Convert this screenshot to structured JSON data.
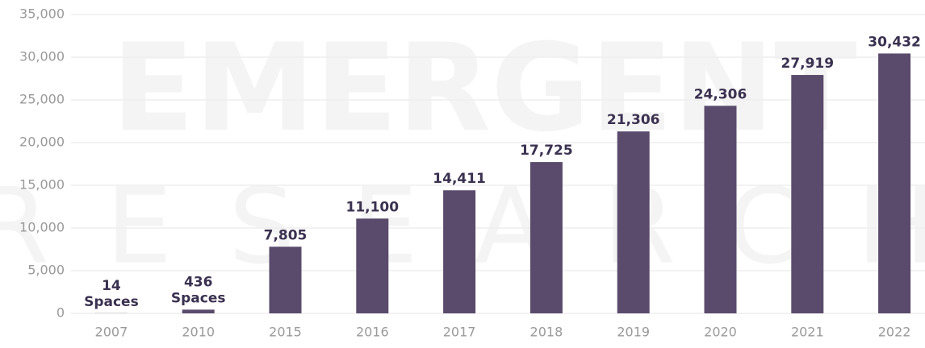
{
  "chart_data": {
    "type": "bar",
    "watermark": [
      "EMERGENT",
      "RESEARCH"
    ],
    "categories": [
      "2007",
      "2010",
      "2015",
      "2016",
      "2017",
      "2018",
      "2019",
      "2020",
      "2021",
      "2022"
    ],
    "values": [
      14,
      436,
      7805,
      11100,
      14411,
      17725,
      21306,
      24306,
      27919,
      30432
    ],
    "value_labels": [
      "14 Spaces",
      "436 Spaces",
      "7,805",
      "11,100",
      "14,411",
      "17,725",
      "21,306",
      "24,306",
      "27,919",
      "30,432"
    ],
    "color": "#5a4b6c",
    "ylim": [
      0,
      35000
    ],
    "yticks": [
      0,
      {
        "value": 5000,
        "label": "5,000"
      },
      {
        "value": 10000,
        "label": "10,000"
      },
      {
        "value": 15000,
        "label": "15,000"
      },
      {
        "value": 20000,
        "label": "20,000"
      },
      {
        "value": 25000,
        "label": "25,000"
      },
      {
        "value": 30000,
        "label": "30,000"
      },
      {
        "value": 35000,
        "label": "35,000"
      }
    ],
    "grid": true
  }
}
